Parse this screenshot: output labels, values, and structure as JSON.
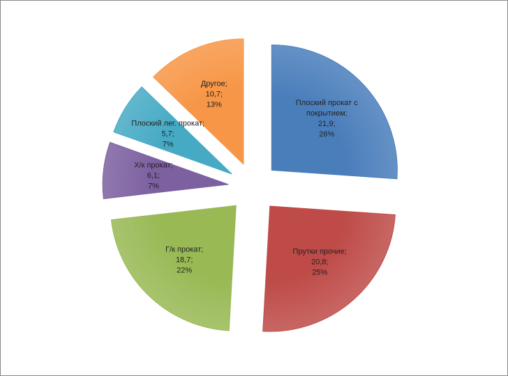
{
  "chart_data": {
    "type": "pie",
    "categories": [
      "Плоский прокат с покрытием;",
      "Прутки прочие;",
      "Г/к прокат;",
      "Х/к прокат;",
      "Плоский лег. прокат;",
      "Другое;"
    ],
    "values": [
      21.9,
      20.8,
      18.7,
      6.1,
      5.7,
      10.7
    ],
    "value_labels": [
      "21,9;",
      "20,8;",
      "18,7;",
      "6,1;",
      "5,7;",
      "10,7;"
    ],
    "percent_values": [
      26,
      25,
      22,
      7,
      7,
      13
    ],
    "percent_labels": [
      "26%",
      "25%",
      "22%",
      "7%",
      "7%",
      "13%"
    ],
    "colors": [
      "#4a7ebb",
      "#be4b48",
      "#98b954",
      "#7d60a0",
      "#46aac5",
      "#f79646"
    ]
  }
}
